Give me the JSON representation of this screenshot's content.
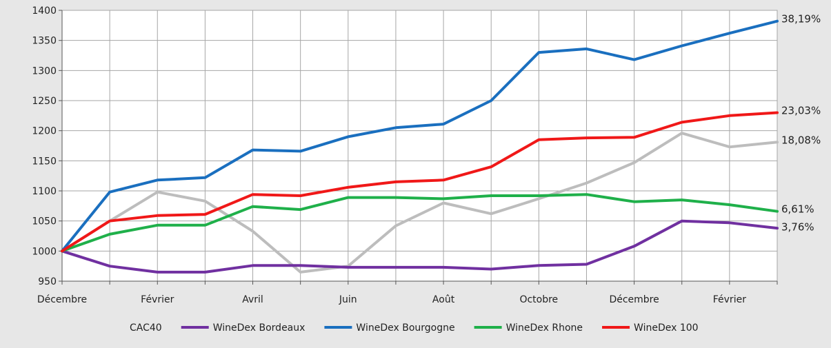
{
  "chart_data": {
    "type": "line",
    "title": "",
    "xlabel": "",
    "ylabel": "",
    "ylim": [
      950,
      1400
    ],
    "yticks": [
      950,
      1000,
      1050,
      1100,
      1150,
      1200,
      1250,
      1300,
      1350,
      1400
    ],
    "grid": true,
    "legend_position": "bottom",
    "x_tick_labels": [
      "Décembre",
      "Février",
      "Avril",
      "Juin",
      "Août",
      "Octobre",
      "Décembre",
      "Février"
    ],
    "x": [
      0,
      1,
      2,
      3,
      4,
      5,
      6,
      7,
      8,
      9,
      10,
      11,
      12,
      13,
      14,
      15
    ],
    "series": [
      {
        "name": "CAC40",
        "color": "#bdbdbd",
        "values": [
          1000,
          1050,
          1098,
          1083,
          1033,
          965,
          975,
          1042,
          1080,
          1062,
          1087,
          1113,
          1147,
          1196,
          1173,
          1181
        ],
        "end_label": "18,08%"
      },
      {
        "name": "WineDex Bordeaux",
        "color": "#7030a0",
        "values": [
          1000,
          975,
          965,
          965,
          976,
          976,
          973,
          973,
          973,
          970,
          976,
          978,
          1008,
          1050,
          1047,
          1038
        ],
        "end_label": "3,76%"
      },
      {
        "name": "WineDex Bourgogne",
        "color": "#1a6fbf",
        "values": [
          1000,
          1098,
          1118,
          1122,
          1168,
          1166,
          1190,
          1205,
          1211,
          1250,
          1330,
          1336,
          1318,
          1341,
          1362,
          1382
        ],
        "end_label": "38,19%"
      },
      {
        "name": "WineDex Rhone",
        "color": "#1fb04a",
        "values": [
          1000,
          1028,
          1043,
          1043,
          1074,
          1069,
          1089,
          1089,
          1087,
          1092,
          1092,
          1094,
          1082,
          1085,
          1077,
          1066
        ],
        "end_label": "6,61%"
      },
      {
        "name": "WineDex 100",
        "color": "#f01818",
        "values": [
          1000,
          1050,
          1059,
          1061,
          1094,
          1092,
          1106,
          1115,
          1118,
          1140,
          1185,
          1188,
          1189,
          1214,
          1225,
          1230
        ],
        "end_label": "23,03%"
      }
    ]
  }
}
